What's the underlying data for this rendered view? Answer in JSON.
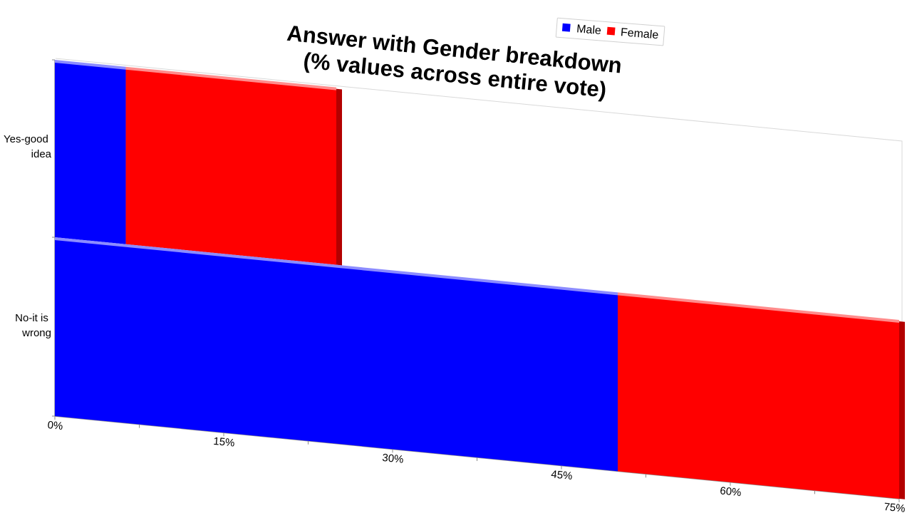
{
  "chart_data": {
    "type": "bar",
    "orientation": "horizontal",
    "stacked": true,
    "title": "Answer with Gender breakdown\n(% values across entire vote)",
    "categories": [
      "Yes-good\nidea",
      "No-it is\nwrong"
    ],
    "series": [
      {
        "name": "Male",
        "color": "#0000ff",
        "values": [
          6.3,
          50.0
        ]
      },
      {
        "name": "Female",
        "color": "#ff0000",
        "values": [
          18.7,
          25.0
        ]
      }
    ],
    "x_ticks": [
      "0%",
      "15%",
      "30%",
      "45%",
      "60%",
      "75%"
    ],
    "xlim": [
      0,
      75
    ],
    "grid": false,
    "legend_position": "top-right"
  }
}
